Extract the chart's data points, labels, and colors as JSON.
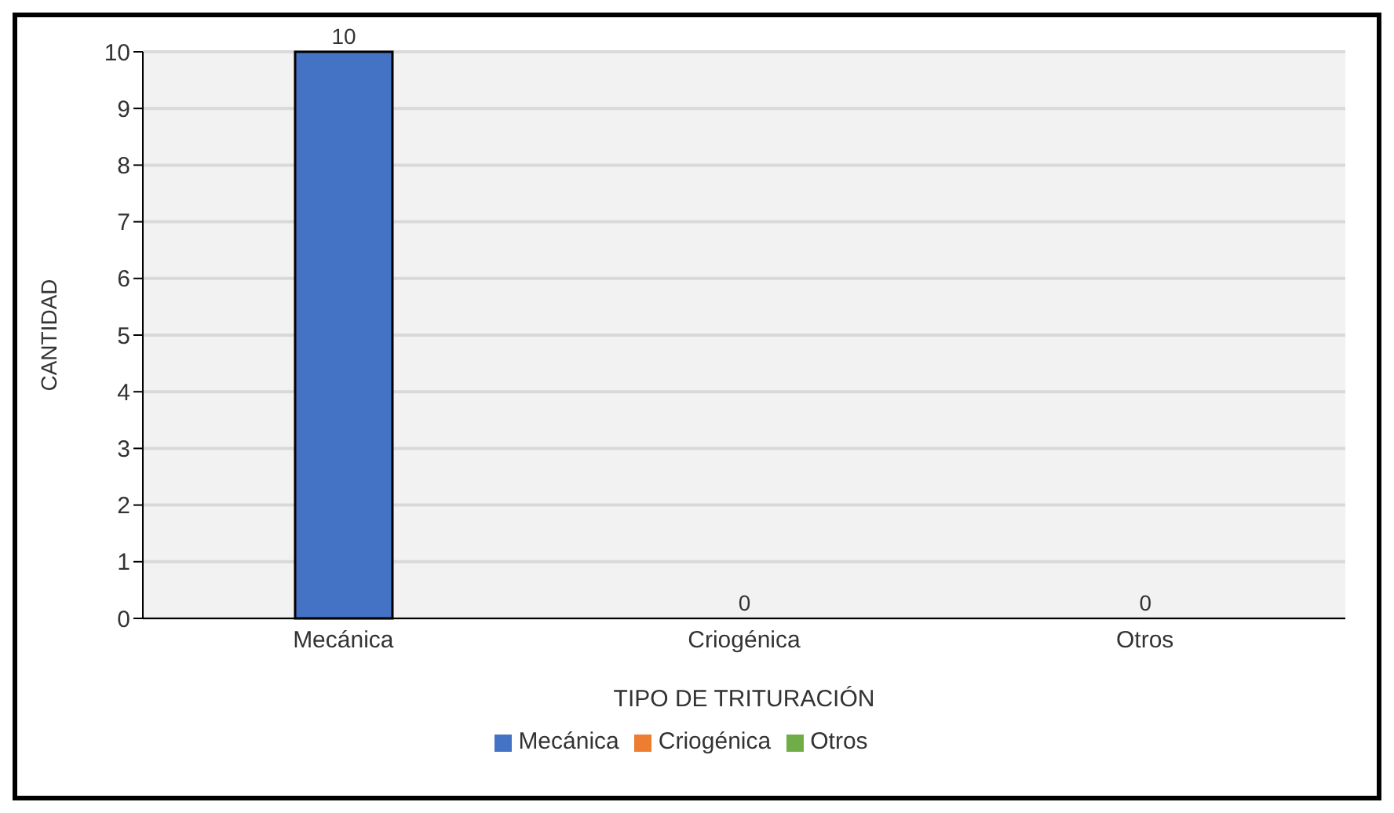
{
  "chart_data": {
    "type": "bar",
    "xlabel": "TIPO DE TRITURACIÓN",
    "ylabel": "CANTIDAD",
    "categories": [
      "Mecánica",
      "Criogénica",
      "Otros"
    ],
    "series": [
      {
        "name": "Mecánica",
        "color": "#4472c4",
        "values": [
          10,
          null,
          null
        ]
      },
      {
        "name": "Criogénica",
        "color": "#ed7d31",
        "values": [
          null,
          0,
          null
        ]
      },
      {
        "name": "Otros",
        "color": "#70ad47",
        "values": [
          null,
          null,
          0
        ]
      }
    ],
    "ylim": [
      0,
      10
    ],
    "yticks": [
      0,
      1,
      2,
      3,
      4,
      5,
      6,
      7,
      8,
      9,
      10
    ],
    "grid": "y",
    "legend": "bottom",
    "data_labels": true
  }
}
